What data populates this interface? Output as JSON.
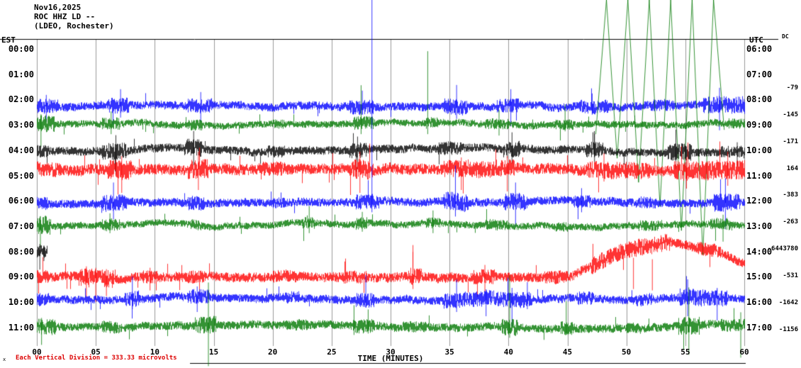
{
  "title": {
    "date": "Nov16,2025",
    "station": "ROC HHZ LD --",
    "location": "(LDEO, Rochester)"
  },
  "axis": {
    "left_header": "EST",
    "right_header": "UTC",
    "dc_header": "DC",
    "x_title": "TIME (MINUTES)",
    "x_ticks": [
      "00",
      "05",
      "10",
      "15",
      "20",
      "25",
      "30",
      "35",
      "40",
      "45",
      "50",
      "55",
      "60"
    ]
  },
  "footer": {
    "scale_note": "Each Vertical Division =  333.33 microvolts",
    "corner_mark": "x"
  },
  "colors": {
    "black": "#000000",
    "red": "#ff0000",
    "blue": "#0000ff",
    "green": "#007700",
    "grid": "#9a9a9a",
    "axis": "#000000",
    "note": "#dd0000"
  },
  "chart_data": {
    "type": "line",
    "title": "Helicorder seismogram ROC HHZ LD -- (LDEO, Rochester), Nov16,2025",
    "xlabel": "TIME (MINUTES)",
    "x_range_minutes": [
      0,
      60
    ],
    "row_interval_hours": 1,
    "vertical_division_microvolts": 333.33,
    "rows": [
      {
        "est": "00:00",
        "utc": "06:00",
        "dc": "",
        "color": "black",
        "visible": false
      },
      {
        "est": "01:00",
        "utc": "07:00",
        "dc": "",
        "color": "red",
        "visible": false
      },
      {
        "est": "02:00",
        "utc": "08:00",
        "dc": "-79",
        "color": "blue",
        "visible": true,
        "dy": 8,
        "amp": 6,
        "bursts": [
          [
            0,
            1.8,
            11
          ],
          [
            6,
            7.8,
            12
          ],
          [
            12.8,
            14.8,
            11
          ],
          [
            26.5,
            28.5,
            11
          ],
          [
            34.5,
            36.5,
            12
          ],
          [
            39,
            41,
            11
          ],
          [
            46,
            48.5,
            10
          ],
          [
            52,
            54,
            9
          ],
          [
            56.5,
            60,
            13
          ]
        ],
        "spikes": [
          [
            0.8,
            16,
            22
          ],
          [
            7.1,
            24,
            16
          ],
          [
            13.9,
            20,
            22
          ],
          [
            27.6,
            22,
            12
          ],
          [
            35.6,
            30,
            18
          ],
          [
            40.2,
            24,
            28
          ],
          [
            47.1,
            18,
            12
          ],
          [
            57.9,
            26,
            34
          ]
        ]
      },
      {
        "est": "03:00",
        "utc": "09:00",
        "dc": "-145",
        "color": "green",
        "visible": true,
        "dy": -2,
        "amp": 5,
        "bursts": [
          [
            0,
            1.5,
            13
          ],
          [
            5.5,
            7,
            9
          ],
          [
            12.8,
            14,
            8
          ],
          [
            20,
            21,
            7
          ],
          [
            26.8,
            28.6,
            10
          ],
          [
            33,
            34,
            8
          ],
          [
            38,
            40,
            8
          ],
          [
            44,
            45.5,
            8
          ],
          [
            58.6,
            60,
            8
          ]
        ],
        "spikes": [
          [
            0.35,
            14,
            32
          ],
          [
            6.3,
            18,
            14
          ],
          [
            27.5,
            55,
            14
          ],
          [
            33.15,
            103,
            14
          ],
          [
            39.2,
            20,
            16
          ],
          [
            44.8,
            28,
            10
          ]
        ],
        "event": {
          "from": 47.4,
          "to": 58.3,
          "n": 6,
          "b0": 14,
          "b1": 184
        }
      },
      {
        "est": "04:00",
        "utc": "10:00",
        "dc": "-171",
        "color": "black",
        "visible": true,
        "dy": 0,
        "amp": 6,
        "bursts": [
          [
            0,
            1,
            9
          ],
          [
            5.5,
            7.6,
            13
          ],
          [
            12.5,
            14,
            13
          ],
          [
            19.5,
            21,
            9
          ],
          [
            26.5,
            28,
            12
          ],
          [
            34,
            36,
            10
          ],
          [
            39.5,
            41,
            12
          ],
          [
            46.5,
            48,
            12
          ],
          [
            53.5,
            55.5,
            13
          ],
          [
            58,
            60,
            9
          ]
        ],
        "spikes": [
          [
            6.7,
            22,
            34
          ],
          [
            13.3,
            28,
            20
          ],
          [
            27.2,
            20,
            26
          ],
          [
            40.3,
            26,
            18
          ],
          [
            47.3,
            24,
            16
          ],
          [
            54.2,
            30,
            26
          ],
          [
            59.4,
            12,
            22
          ]
        ]
      },
      {
        "est": "05:00",
        "utc": "11:00",
        "dc": "164",
        "color": "red",
        "visible": true,
        "dy": -10,
        "amp": 8,
        "bursts": [
          [
            0,
            2,
            11
          ],
          [
            6,
            8,
            15
          ],
          [
            12.8,
            14.6,
            15
          ],
          [
            19,
            21,
            11
          ],
          [
            26.5,
            28.6,
            15
          ],
          [
            34.5,
            40.5,
            13
          ],
          [
            46.5,
            52,
            13
          ],
          [
            54,
            60,
            15
          ]
        ],
        "spikes": [
          [
            7.2,
            18,
            34
          ],
          [
            13.7,
            24,
            30
          ],
          [
            27.4,
            24,
            34
          ],
          [
            36,
            16,
            30
          ],
          [
            39.9,
            18,
            32
          ],
          [
            48.1,
            22,
            18
          ],
          [
            55.1,
            16,
            28
          ],
          [
            58.6,
            24,
            24
          ]
        ]
      },
      {
        "est": "06:00",
        "utc": "12:00",
        "dc": "-383",
        "color": "blue",
        "visible": true,
        "dy": 2,
        "amp": 6,
        "bursts": [
          [
            0,
            0.9,
            10
          ],
          [
            5.5,
            7.6,
            13
          ],
          [
            12.8,
            14.2,
            11
          ],
          [
            20,
            21,
            8
          ],
          [
            27,
            29,
            12
          ],
          [
            34.5,
            36.6,
            14
          ],
          [
            39.5,
            41.6,
            13
          ],
          [
            45.5,
            47,
            10
          ],
          [
            51,
            52.5,
            9
          ],
          [
            57.4,
            59.6,
            14
          ]
        ],
        "spikes": [
          [
            6.5,
            28,
            24
          ],
          [
            28.42,
            400,
            14
          ],
          [
            35.5,
            52,
            20
          ],
          [
            40.6,
            28,
            34
          ],
          [
            46.2,
            20,
            14
          ],
          [
            58.4,
            34,
            38
          ]
        ]
      },
      {
        "est": "07:00",
        "utc": "13:00",
        "dc": "-263",
        "color": "green",
        "visible": true,
        "dy": -2,
        "amp": 5,
        "bursts": [
          [
            0,
            1.2,
            14
          ],
          [
            5.5,
            7,
            9
          ],
          [
            13,
            14,
            8
          ],
          [
            22.5,
            23.6,
            10
          ],
          [
            27,
            28,
            9
          ],
          [
            33,
            34.2,
            8
          ],
          [
            38,
            40,
            8
          ],
          [
            44,
            45,
            7
          ],
          [
            51,
            53,
            8
          ],
          [
            57,
            59,
            9
          ]
        ],
        "spikes": [
          [
            0.3,
            12,
            32
          ],
          [
            6.2,
            16,
            12
          ],
          [
            23.1,
            26,
            12
          ],
          [
            27.6,
            18,
            10
          ],
          [
            33.6,
            20,
            12
          ],
          [
            58.2,
            14,
            24
          ]
        ]
      },
      {
        "est": "08:00",
        "utc": "14:00",
        "dc": "-6443780",
        "color": "black",
        "visible": true,
        "dy": 0,
        "amp": 9,
        "range": [
          0,
          0.85
        ],
        "spikes": [
          [
            0.25,
            10,
            26
          ],
          [
            0.6,
            8,
            14
          ]
        ]
      },
      {
        "est": "09:00",
        "utc": "15:00",
        "dc": "-531",
        "color": "red",
        "visible": true,
        "dy": 0,
        "amp": 7,
        "bursts": [
          [
            0,
            1,
            10
          ],
          [
            3.5,
            6.5,
            14
          ],
          [
            9,
            10.2,
            10
          ],
          [
            12.8,
            14.2,
            10
          ],
          [
            20,
            22,
            9
          ],
          [
            26,
            28,
            10
          ],
          [
            31.4,
            32.6,
            13
          ],
          [
            37,
            39,
            11
          ],
          [
            43,
            45,
            10
          ],
          [
            47,
            53.5,
            13
          ],
          [
            56,
            58,
            10
          ]
        ],
        "humps": [
          [
            45,
            62,
            45
          ]
        ],
        "spikes": [
          [
            4.2,
            14,
            30
          ],
          [
            5.0,
            12,
            36
          ],
          [
            5.9,
            10,
            28
          ],
          [
            9.6,
            12,
            20
          ],
          [
            31.9,
            44,
            18
          ],
          [
            38,
            16,
            22
          ],
          [
            50.6,
            26,
            18
          ],
          [
            52.2,
            24,
            20
          ]
        ]
      },
      {
        "est": "10:00",
        "utc": "16:00",
        "dc": "-1642",
        "color": "blue",
        "visible": true,
        "dy": -3,
        "amp": 6,
        "bursts": [
          [
            0,
            1,
            10
          ],
          [
            7.4,
            8.6,
            12
          ],
          [
            12.8,
            14.6,
            11
          ],
          [
            21,
            22.2,
            9
          ],
          [
            27,
            28.6,
            11
          ],
          [
            34.5,
            42,
            12
          ],
          [
            45.8,
            47.2,
            10
          ],
          [
            50.8,
            52.2,
            9
          ],
          [
            54.4,
            58.6,
            13
          ]
        ],
        "spikes": [
          [
            8.1,
            32,
            14
          ],
          [
            13.6,
            18,
            18
          ],
          [
            27.9,
            34,
            12
          ],
          [
            35.6,
            28,
            18
          ],
          [
            38.1,
            14,
            24
          ],
          [
            40.3,
            16,
            38
          ],
          [
            41.6,
            24,
            14
          ],
          [
            55.2,
            28,
            24
          ],
          [
            57.7,
            16,
            30
          ]
        ]
      },
      {
        "est": "11:00",
        "utc": "17:00",
        "dc": "-1156",
        "color": "green",
        "visible": true,
        "dy": 0,
        "amp": 6,
        "bursts": [
          [
            0,
            1.6,
            12
          ],
          [
            5.5,
            7,
            9
          ],
          [
            13.4,
            15.2,
            13
          ],
          [
            21,
            23,
            8
          ],
          [
            26.8,
            28.6,
            11
          ],
          [
            31,
            33,
            8
          ],
          [
            39.4,
            40.8,
            13
          ],
          [
            44.4,
            45.6,
            10
          ],
          [
            50,
            51.2,
            8
          ],
          [
            54.4,
            56.2,
            14
          ],
          [
            58,
            60,
            9
          ]
        ],
        "spikes": [
          [
            0.4,
            12,
            26
          ],
          [
            14.55,
            62,
            56
          ],
          [
            26.9,
            30,
            12
          ],
          [
            28.1,
            24,
            10
          ],
          [
            40.1,
            72,
            16
          ],
          [
            44.9,
            36,
            12
          ],
          [
            55.3,
            55,
            40
          ],
          [
            59.7,
            20,
            44
          ]
        ]
      }
    ]
  }
}
